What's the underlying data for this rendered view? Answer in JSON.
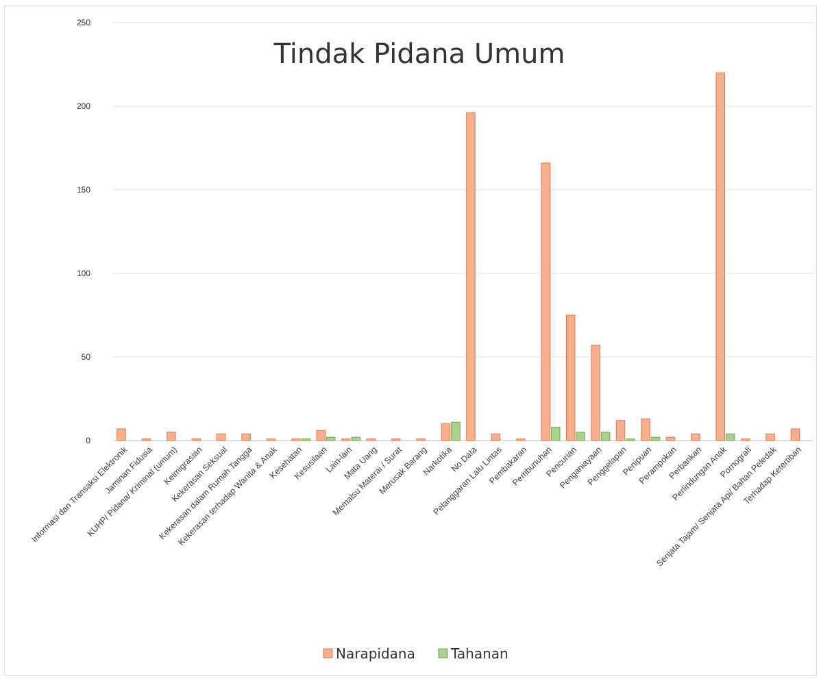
{
  "chart_data": {
    "type": "bar",
    "title": "Tindak Pidana Umum",
    "xlabel": "",
    "ylabel": "",
    "ylim": [
      0,
      250
    ],
    "yticks": [
      0,
      50,
      100,
      150,
      200,
      250
    ],
    "grid": true,
    "legend_position": "bottom",
    "categories": [
      "Informasi dan Transaksi Elektronik",
      "Jaminan Fidusia",
      "KUHP/ Pidana/ Kriminal (umum)",
      "Keimigrasian",
      "Kekerasan Seksual",
      "Kekerasan dalam Rumah Tangga",
      "Kekerasan terhadap Wanita & Anak",
      "Kesehatan",
      "Kesusilaan",
      "Lain-lain",
      "Mata Uang",
      "Memalsu Materai / Surat",
      "Merusak Barang",
      "Narkotika",
      "No Data",
      "Pelanggaran Lalu Lintas",
      "Pembakaran",
      "Pembunuhan",
      "Pencurian",
      "Penganiayaan",
      "Penggelapan",
      "Penipuan",
      "Perampokan",
      "Perbankan",
      "Perlindungan Anak",
      "Pornografi",
      "Senjata Tajam/ Senjata Api/ Bahan Peledak",
      "Terhadap Ketertiban"
    ],
    "series": [
      {
        "name": "Narapidana",
        "color": "#f7b08e",
        "edge": "#e8744a",
        "values": [
          7,
          1,
          5,
          1,
          4,
          4,
          1,
          1,
          6,
          1,
          1,
          1,
          1,
          10,
          196,
          4,
          1,
          166,
          75,
          57,
          12,
          13,
          2,
          4,
          220,
          1,
          4,
          7
        ]
      },
      {
        "name": "Tahanan",
        "color": "#a9d18e",
        "edge": "#6ea84f",
        "values": [
          0,
          0,
          0,
          0,
          0,
          0,
          0,
          1,
          2,
          2,
          0,
          0,
          0,
          11,
          0,
          0,
          0,
          8,
          5,
          5,
          1,
          2,
          0,
          0,
          4,
          0,
          0,
          0
        ]
      }
    ]
  }
}
